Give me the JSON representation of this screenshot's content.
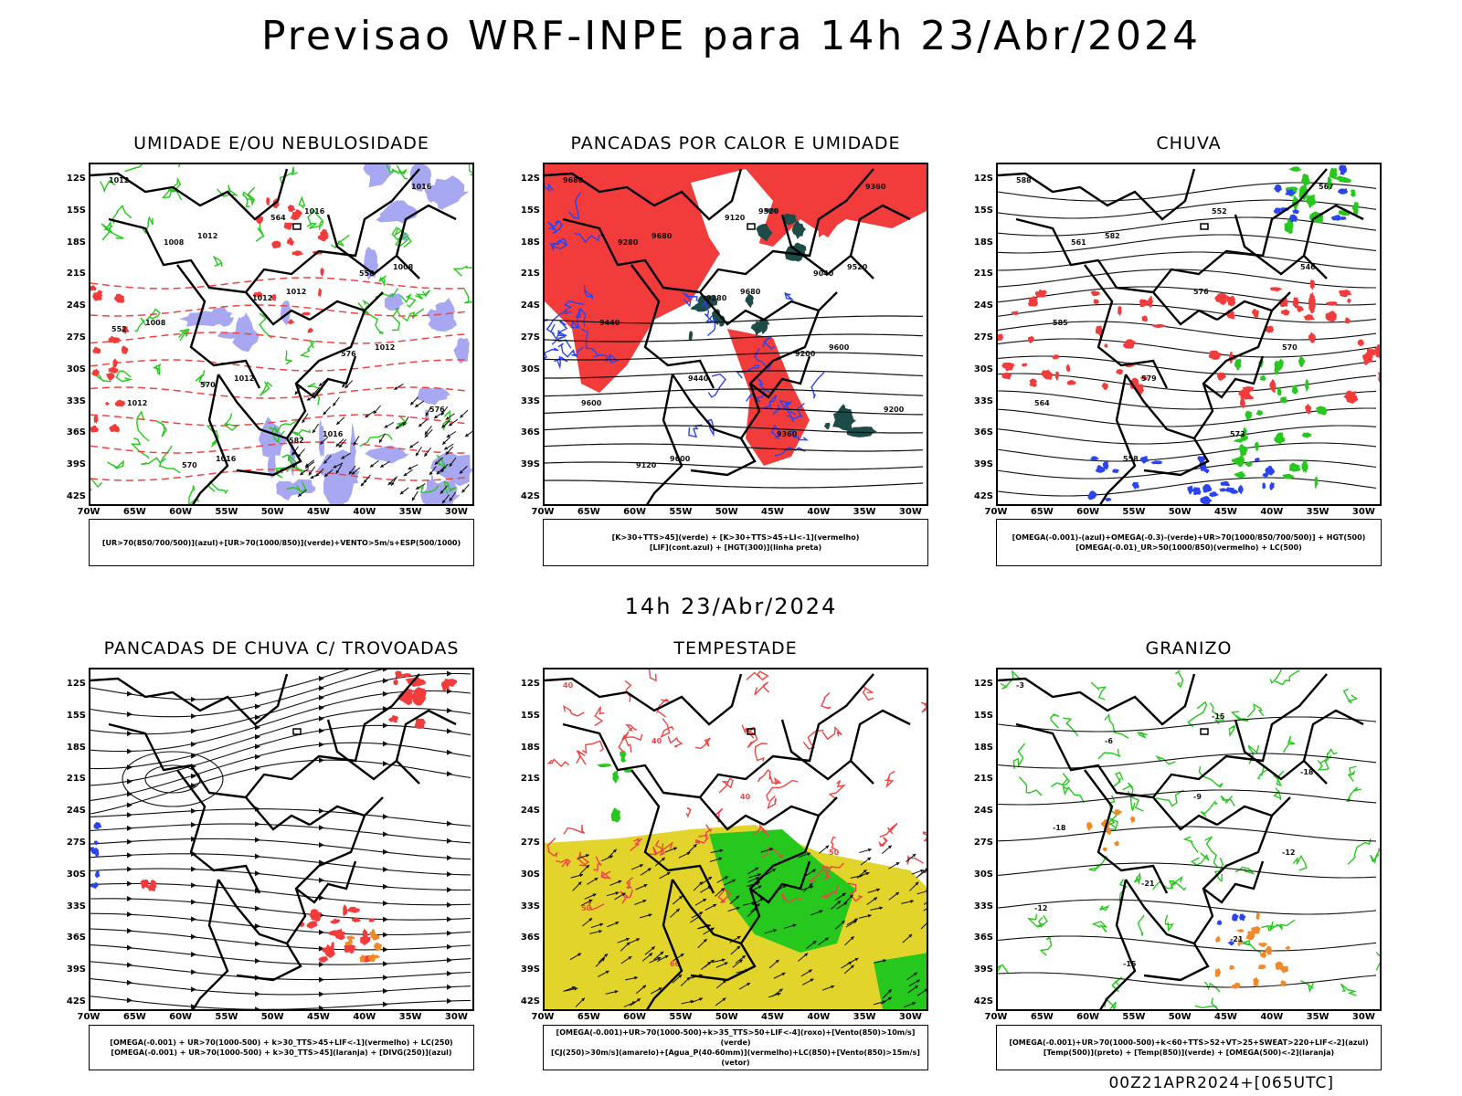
{
  "title": "Previsao WRF-INPE  para 14h 23/Abr/2024",
  "subtitle": "14h 23/Abr/2024",
  "footer": "00Z21APR2024+[065UTC]",
  "lat_labels": [
    "12S",
    "15S",
    "18S",
    "21S",
    "24S",
    "27S",
    "30S",
    "33S",
    "36S",
    "39S",
    "42S"
  ],
  "lon_labels": [
    "70W",
    "65W",
    "60W",
    "55W",
    "50W",
    "45W",
    "40W",
    "35W",
    "30W"
  ],
  "panels": [
    {
      "id": "umidade",
      "title": "UMIDADE E/OU NEBULOSIDADE",
      "legend": [
        "[UR>70(850/700/500)](azul)+[UR>70(1000/850)](verde)+VENTO>5m/s+ESP(500/1000)"
      ],
      "contour_labels": [
        "1012",
        "1012",
        "1012",
        "1012",
        "1012",
        "1016",
        "1016",
        "1008",
        "1008",
        "1012",
        "1016",
        "1016",
        "1008",
        "1012",
        "576",
        "576",
        "570",
        "564",
        "558",
        "552",
        "570",
        "582"
      ]
    },
    {
      "id": "pancadas_calor",
      "title": "PANCADAS POR CALOR E UMIDADE",
      "legend": [
        "[K>30+TTS>45](verde) + [K>30+TTS>45+LI<-1](vermelho)",
        "[LIF](cont.azul) + [HGT(300)](linha preta)"
      ],
      "contour_labels": [
        "9680",
        "9680",
        "9680",
        "9600",
        "9600",
        "9600",
        "9520",
        "9520",
        "9440",
        "9440",
        "9360",
        "9360",
        "9280",
        "9280",
        "9200",
        "9200",
        "9120",
        "9120",
        "9040"
      ]
    },
    {
      "id": "chuva",
      "title": "CHUVA",
      "legend": [
        "[OMEGA(-0.001)-(azul)+OMEGA(-0.3)-(verde)+UR>70(1000/850/700/500)] + HGT(500)",
        "[OMEGA(-0.01)_UR>50(1000/850)(vermelho) + LC(500)"
      ],
      "contour_labels": [
        "588",
        "582",
        "576",
        "570",
        "564",
        "558",
        "552",
        "546",
        "585",
        "579",
        "573",
        "567",
        "561"
      ]
    },
    {
      "id": "trovoadas",
      "title": "PANCADAS DE CHUVA C/ TROVOADAS",
      "legend": [
        "[OMEGA(-0.001) + UR>70(1000-500) + k>30_TTS>45+LIF<-1](vermelho) + LC(250)",
        "[OMEGA(-0.001) + UR>70(1000-500) + k>30_TTS>45](laranja) + [DIVG(250)](azul)"
      ],
      "contour_labels": []
    },
    {
      "id": "tempestade",
      "title": "TEMPESTADE",
      "legend": [
        "[OMEGA(-0.001)+UR>70(1000-500)+k>35_TTS>50+LIF<-4](roxo)+[Vento(850)>10m/s](verde)",
        "[CJ(250)>30m/s](amarelo)+[Agua_P(40-60mm)](vermelho)+LC(850)+[Vento(850)>15m/s](vetor)"
      ],
      "contour_labels": [
        "40",
        "40",
        "40",
        "50",
        "50",
        "60"
      ]
    },
    {
      "id": "granizo",
      "title": "GRANIZO",
      "legend": [
        "[OMEGA(-0.001)+UR>70(1000-500)+k<60+TTS>52+VT>25+SWEAT>220+LIF<-2](azul)",
        "[Temp(500)](preto) + [Temp(850)](verde) + [OMEGA(500)<-2](laranja)"
      ],
      "contour_labels": [
        "-3",
        "-6",
        "-9",
        "-12",
        "-12",
        "-15",
        "-15",
        "-18",
        "-18",
        "-21",
        "-21"
      ]
    }
  ],
  "colors": {
    "red": "#f23c3c",
    "green": "#27c81e",
    "blue": "#2a44f0",
    "lavender": "#a7a7f2",
    "darkteal": "#1d4b48",
    "yellow": "#e2d42a",
    "orange": "#ee8a2a"
  }
}
